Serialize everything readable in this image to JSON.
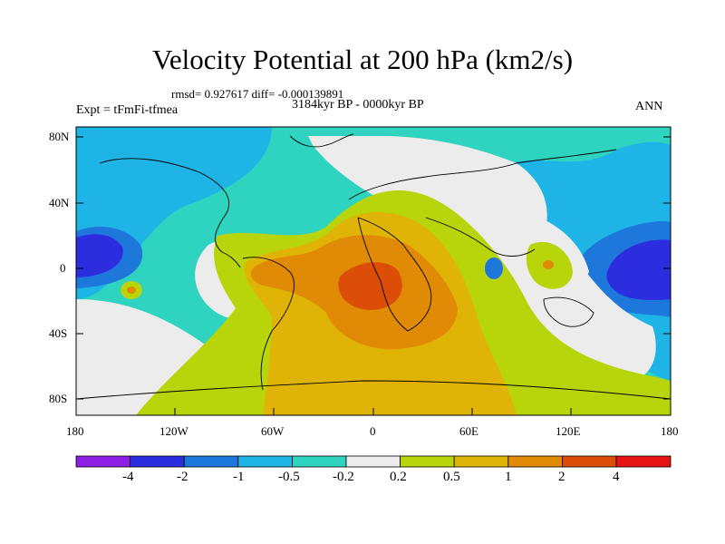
{
  "title": "Velocity Potential at 200 hPa (km2/s)",
  "stats_text": "rmsd= 0.927617 diff= -0.000139891",
  "period_text": "3184kyr BP - 0000kyr BP",
  "experiment_text": "Expt = tFmFi-tfmea",
  "season_text": "ANN",
  "lat_labels": [
    "80N",
    "40N",
    "0",
    "40S",
    "80S"
  ],
  "lon_labels": [
    "180",
    "120W",
    "60W",
    "0",
    "60E",
    "120E",
    "180"
  ],
  "colorbar": {
    "colors": [
      "#8c1ee6",
      "#2d2de0",
      "#1e78dc",
      "#1eb4e6",
      "#2fd4c0",
      "#ececec",
      "#b8d40a",
      "#e0b406",
      "#e08a06",
      "#dc4e08",
      "#e61414"
    ],
    "labels": [
      "-4",
      "-2",
      "-1",
      "-0.5",
      "-0.2",
      "0.2",
      "0.5",
      "1",
      "2",
      "4"
    ]
  },
  "colors": {
    "map_background": "#2fd4c0",
    "coastline": "#000000",
    "frame": "#000000"
  }
}
